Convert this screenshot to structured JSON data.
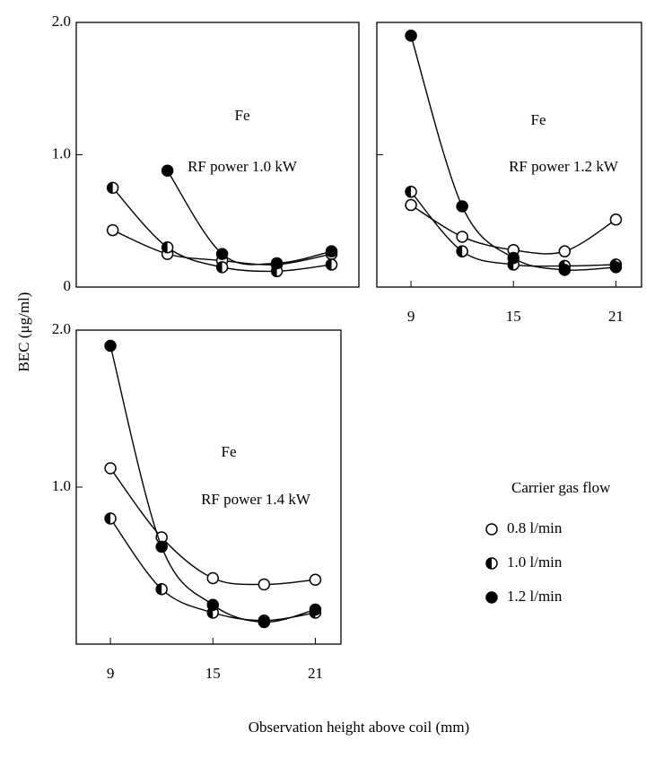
{
  "ylabel": "BEC (μg/ml)",
  "xlabel": "Observation height above coil (mm)",
  "chart_data": [
    {
      "type": "line",
      "annotations": [
        "Fe",
        "RF power 1.0 kW"
      ],
      "x": [
        9,
        12,
        15,
        18,
        21
      ],
      "xlim": [
        7,
        22.5
      ],
      "ylim": [
        0,
        2
      ],
      "yticks": [
        0,
        {
          "value": 1,
          "label": "1.0"
        },
        {
          "value": 2,
          "label": "2.0"
        }
      ],
      "series": [
        {
          "color": "#000000",
          "marker": "open",
          "values": [
            0.43,
            0.25,
            0.2,
            0.17,
            0.25
          ]
        },
        {
          "color": "#000000",
          "marker": "half",
          "values": [
            0.75,
            0.3,
            0.15,
            0.12,
            0.17
          ]
        },
        {
          "color": "#000000",
          "marker": "filled",
          "values": [
            null,
            0.88,
            0.25,
            0.18,
            0.27
          ]
        }
      ]
    },
    {
      "type": "line",
      "annotations": [
        "Fe",
        "RF power 1.2 kW"
      ],
      "x": [
        9,
        12,
        15,
        18,
        21
      ],
      "xlim": [
        7,
        22.5
      ],
      "ylim": [
        0,
        2
      ],
      "xticks": [
        9,
        15,
        21
      ],
      "ytick_marks": [
        0,
        1,
        2
      ],
      "series": [
        {
          "color": "#000000",
          "marker": "open",
          "values": [
            0.62,
            0.38,
            0.28,
            0.27,
            0.51
          ]
        },
        {
          "color": "#000000",
          "marker": "half",
          "values": [
            0.72,
            0.27,
            0.17,
            0.16,
            0.17
          ]
        },
        {
          "color": "#000000",
          "marker": "filled",
          "values": [
            1.9,
            0.61,
            0.22,
            0.13,
            0.15
          ]
        }
      ]
    },
    {
      "type": "line",
      "annotations": [
        "Fe",
        "RF power 1.4 kW"
      ],
      "x": [
        9,
        12,
        15,
        18,
        21
      ],
      "xlim": [
        7,
        22.5
      ],
      "ylim": [
        0,
        2
      ],
      "xticks": [
        9,
        15,
        21
      ],
      "yticks": [
        {
          "value": 1,
          "label": "1.0"
        },
        {
          "value": 2,
          "label": "2.0"
        }
      ],
      "legend_title": "Carrier gas flow",
      "series": [
        {
          "name": "0.8 l/min",
          "color": "#000000",
          "marker": "open",
          "values": [
            1.12,
            0.68,
            0.42,
            0.38,
            0.41
          ]
        },
        {
          "name": "1.0 l/min",
          "color": "#000000",
          "marker": "half",
          "values": [
            0.8,
            0.35,
            0.2,
            0.15,
            0.2
          ]
        },
        {
          "name": "1.2 l/min",
          "color": "#000000",
          "marker": "filled",
          "values": [
            1.9,
            0.62,
            0.25,
            0.14,
            0.22
          ]
        }
      ]
    }
  ]
}
